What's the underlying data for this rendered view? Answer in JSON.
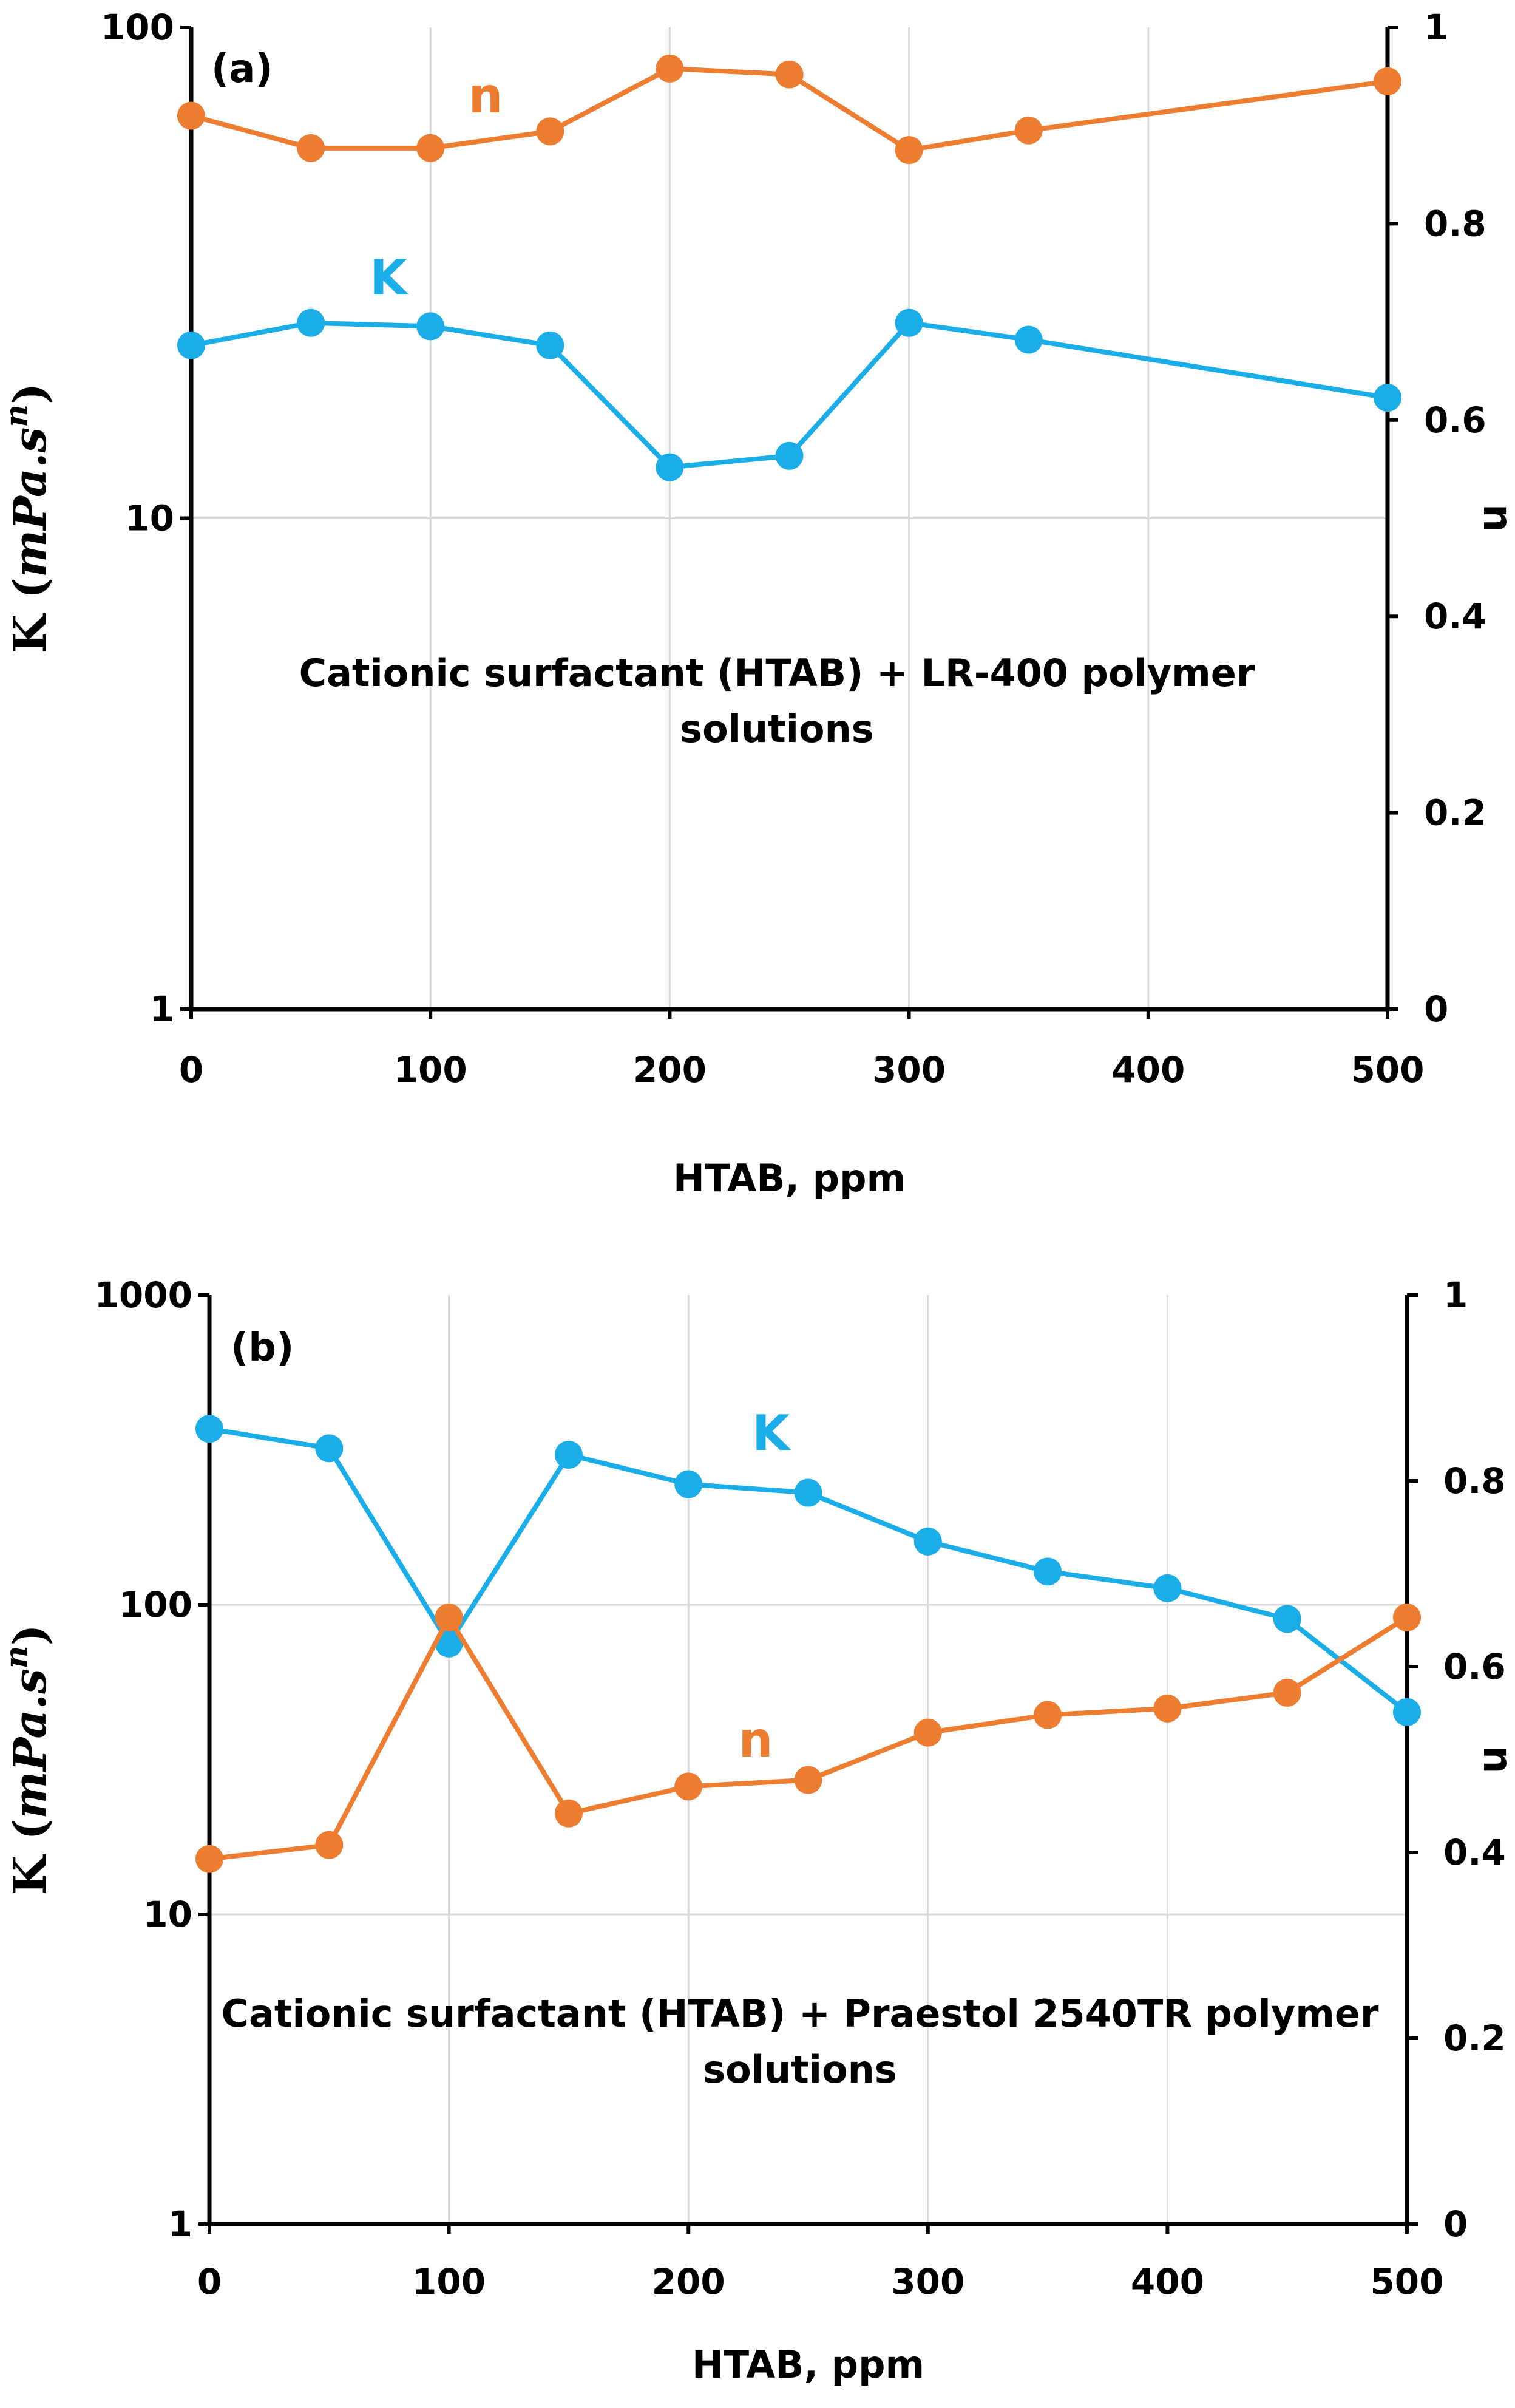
{
  "colors": {
    "K": "#1BADE8",
    "n": "#ED7D31",
    "grid": "#D9D9D9",
    "axis": "#000000"
  },
  "chart_data": [
    {
      "type": "line",
      "panel_label": "(a)",
      "annotation": [
        "Cationic surfactant (HTAB) + LR-400 polymer",
        "solutions"
      ],
      "xlabel": "HTAB, ppm",
      "xlim": [
        0,
        500
      ],
      "xticks": [
        "0",
        "100",
        "200",
        "300",
        "400",
        "500"
      ],
      "ylabel_left_parts": [
        "K (",
        "mPa.s",
        "n",
        ")"
      ],
      "ylabel_left_scale": "log",
      "ylim_left": [
        1,
        100
      ],
      "yticks_left": [
        "1",
        "10",
        "100"
      ],
      "ylabel_right": "n",
      "ylim_right": [
        0,
        1
      ],
      "yticks_right": [
        "0",
        "0.2",
        "0.4",
        "0.6",
        "0.8",
        "1"
      ],
      "series": [
        {
          "name": "K",
          "axis": "left",
          "x": [
            0,
            50,
            100,
            150,
            200,
            250,
            300,
            350,
            500
          ],
          "values": [
            22.5,
            25.0,
            24.6,
            22.5,
            12.7,
            13.4,
            25.0,
            23.1,
            17.6
          ]
        },
        {
          "name": "n",
          "axis": "right",
          "x": [
            0,
            50,
            100,
            150,
            200,
            250,
            300,
            350,
            500
          ],
          "values": [
            0.91,
            0.877,
            0.877,
            0.894,
            0.958,
            0.952,
            0.875,
            0.895,
            0.945
          ]
        }
      ]
    },
    {
      "type": "line",
      "panel_label": "(b)",
      "annotation": [
        "Cationic surfactant (HTAB) + Praestol 2540TR polymer",
        "solutions"
      ],
      "xlabel": "HTAB, ppm",
      "xlim": [
        0,
        500
      ],
      "xticks": [
        "0",
        "100",
        "200",
        "300",
        "400",
        "500"
      ],
      "ylabel_left_parts": [
        "K (",
        "mPa.s",
        "n",
        ")"
      ],
      "ylabel_left_scale": "log",
      "ylim_left": [
        1,
        1000
      ],
      "yticks_left": [
        "1",
        "10",
        "100",
        "1000"
      ],
      "ylabel_right": "n",
      "ylim_right": [
        0,
        1
      ],
      "yticks_right": [
        "0",
        "0.2",
        "0.4",
        "0.6",
        "0.8",
        "1"
      ],
      "series": [
        {
          "name": "K",
          "axis": "left",
          "x": [
            0,
            50,
            100,
            150,
            200,
            250,
            300,
            350,
            400,
            450,
            500
          ],
          "values": [
            370,
            320,
            75,
            305,
            245,
            230,
            160,
            128,
            113,
            90,
            45
          ]
        },
        {
          "name": "n",
          "axis": "right",
          "x": [
            0,
            50,
            100,
            150,
            200,
            250,
            300,
            350,
            400,
            450,
            500
          ],
          "values": [
            0.393,
            0.408,
            0.653,
            0.442,
            0.471,
            0.478,
            0.529,
            0.548,
            0.555,
            0.572,
            0.653
          ]
        }
      ]
    }
  ]
}
